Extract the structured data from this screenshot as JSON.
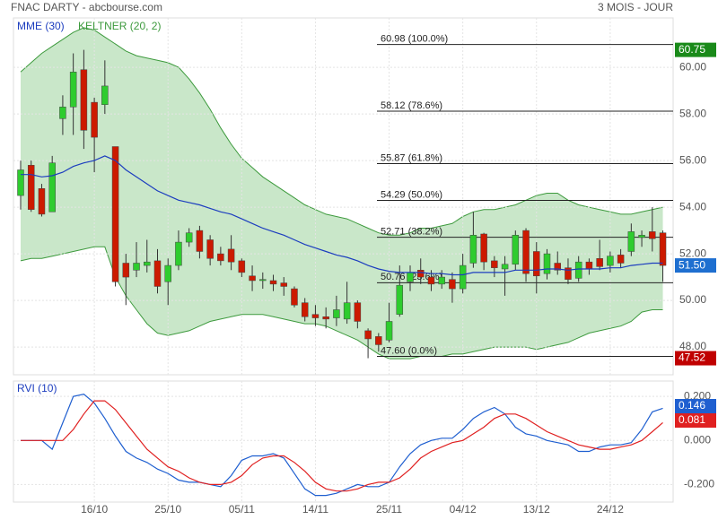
{
  "header": {
    "title": "FNAC DARTY - abcbourse.com",
    "period": "3 MOIS - JOUR"
  },
  "chart_data": [
    {
      "type": "candlestick",
      "up_color": "#2ecc2e",
      "down_color": "#cc1a00",
      "open": [
        54.5,
        55.8,
        54.8,
        53.8,
        57.8,
        58.3,
        59.9,
        58.5,
        58.4,
        56.6,
        51.6,
        51.3,
        51.5,
        51.7,
        50.8,
        51.5,
        52.5,
        53.0,
        52.6,
        52.0,
        52.2,
        51.7,
        51.05,
        50.85,
        50.85,
        50.75,
        50.5,
        49.9,
        49.4,
        49.3,
        49.25,
        49.2,
        49.9,
        48.7,
        48.45,
        48.3,
        49.4,
        50.8,
        51.3,
        51.0,
        50.7,
        50.9,
        50.5,
        51.6,
        52.85,
        51.7,
        51.35,
        51.55,
        53.0,
        52.1,
        51.15,
        51.6,
        51.4,
        50.95,
        51.65,
        51.8,
        51.5,
        51.95,
        52.1,
        52.7,
        52.95,
        52.9
      ],
      "high": [
        56.0,
        56.0,
        55.0,
        56.2,
        58.8,
        60.6,
        60.75,
        58.7,
        60.3,
        56.6,
        52.0,
        52.5,
        52.6,
        52.2,
        51.8,
        53.0,
        53.1,
        53.2,
        52.8,
        52.3,
        52.8,
        51.8,
        51.5,
        51.2,
        51.1,
        51.0,
        50.6,
        50.1,
        49.8,
        49.7,
        50.2,
        50.8,
        50.0,
        48.8,
        48.6,
        49.9,
        51.5,
        51.5,
        51.8,
        51.3,
        51.3,
        51.2,
        52.0,
        53.8,
        52.9,
        51.9,
        51.9,
        53.0,
        53.1,
        52.5,
        52.2,
        52.1,
        51.8,
        51.9,
        51.8,
        52.6,
        52.1,
        52.2,
        53.3,
        53.0,
        54.0,
        53.0
      ],
      "low": [
        53.9,
        53.8,
        53.6,
        53.8,
        57.1,
        57.1,
        56.5,
        55.5,
        58.0,
        50.6,
        49.8,
        51.0,
        51.2,
        50.3,
        49.8,
        51.3,
        52.3,
        51.8,
        51.5,
        51.5,
        51.3,
        51.0,
        50.4,
        50.5,
        50.4,
        50.2,
        49.7,
        49.1,
        48.9,
        48.8,
        48.9,
        49.0,
        48.8,
        47.52,
        47.8,
        48.2,
        49.3,
        50.4,
        50.7,
        50.4,
        50.5,
        49.9,
        50.3,
        51.4,
        51.3,
        51.0,
        50.2,
        51.3,
        50.8,
        50.3,
        50.9,
        51.1,
        50.7,
        50.8,
        51.1,
        51.3,
        51.2,
        51.4,
        51.9,
        52.3,
        52.1,
        50.8
      ],
      "close": [
        55.6,
        53.9,
        53.7,
        55.9,
        58.3,
        59.8,
        57.3,
        57.0,
        59.2,
        50.8,
        51.0,
        51.6,
        51.65,
        50.6,
        51.5,
        52.5,
        52.9,
        52.1,
        51.8,
        51.7,
        51.65,
        51.2,
        50.85,
        50.9,
        50.7,
        50.6,
        49.8,
        49.3,
        49.25,
        49.2,
        49.6,
        49.9,
        49.1,
        48.35,
        48.1,
        49.1,
        50.65,
        51.2,
        51.0,
        50.7,
        51.0,
        50.5,
        51.5,
        52.8,
        51.65,
        51.4,
        51.55,
        52.8,
        51.15,
        51.05,
        52.0,
        51.3,
        50.9,
        51.65,
        51.35,
        51.45,
        51.9,
        51.6,
        52.95,
        52.8,
        52.65,
        51.5
      ],
      "series": [
        {
          "name": "MME (30)",
          "color": "#1c3dbf",
          "values": [
            55.4,
            55.4,
            55.3,
            55.35,
            55.5,
            55.75,
            55.9,
            56.0,
            56.2,
            56.0,
            55.6,
            55.3,
            55.0,
            54.7,
            54.5,
            54.3,
            54.2,
            54.1,
            53.95,
            53.8,
            53.7,
            53.5,
            53.3,
            53.1,
            52.95,
            52.8,
            52.6,
            52.4,
            52.25,
            52.1,
            51.95,
            51.85,
            51.7,
            51.5,
            51.35,
            51.25,
            51.2,
            51.2,
            51.2,
            51.15,
            51.15,
            51.1,
            51.1,
            51.2,
            51.2,
            51.2,
            51.2,
            51.3,
            51.3,
            51.3,
            51.35,
            51.35,
            51.3,
            51.35,
            51.35,
            51.35,
            51.4,
            51.4,
            51.5,
            51.55,
            51.6,
            51.6
          ]
        }
      ],
      "band": {
        "name": "KELTNER (20, 2)",
        "color": "#3d9a3d",
        "fill": "#c9e7c9",
        "upper": [
          59.8,
          60.2,
          60.6,
          60.9,
          61.2,
          61.5,
          61.7,
          61.6,
          61.3,
          61.0,
          60.7,
          60.5,
          60.4,
          60.3,
          60.2,
          60.0,
          59.5,
          58.9,
          58.2,
          57.4,
          56.7,
          56.1,
          55.7,
          55.3,
          55.0,
          54.7,
          54.4,
          54.1,
          53.9,
          53.7,
          53.6,
          53.5,
          53.3,
          53.1,
          52.9,
          52.8,
          52.8,
          52.9,
          53.1,
          53.1,
          53.2,
          53.3,
          53.6,
          53.8,
          53.9,
          53.9,
          54.0,
          54.1,
          54.3,
          54.5,
          54.6,
          54.6,
          54.3,
          54.1,
          54.0,
          53.9,
          53.8,
          53.7,
          53.7,
          53.8,
          53.9,
          54.0
        ],
        "lower": [
          51.7,
          51.8,
          51.8,
          51.9,
          52.0,
          52.1,
          52.2,
          52.3,
          52.3,
          51.0,
          50.2,
          49.6,
          49.0,
          48.6,
          48.5,
          48.6,
          48.7,
          48.9,
          49.1,
          49.2,
          49.3,
          49.4,
          49.4,
          49.4,
          49.3,
          49.2,
          49.1,
          49.0,
          49.0,
          48.9,
          48.7,
          48.5,
          48.3,
          48.0,
          47.7,
          47.5,
          47.5,
          47.5,
          47.6,
          47.6,
          47.6,
          47.7,
          47.7,
          47.8,
          47.9,
          48.0,
          48.0,
          48.0,
          48.0,
          47.9,
          48.0,
          48.1,
          48.2,
          48.4,
          48.6,
          48.7,
          48.8,
          48.9,
          49.1,
          49.5,
          49.6,
          49.6
        ]
      },
      "levels": [
        {
          "value": 60.98,
          "label": "60.98 (100.0%)"
        },
        {
          "value": 58.12,
          "label": "58.12 (78.6%)"
        },
        {
          "value": 55.87,
          "label": "55.87 (61.8%)"
        },
        {
          "value": 54.29,
          "label": "54.29 (50.0%)"
        },
        {
          "value": 52.71,
          "label": "52.71 (38.2%)"
        },
        {
          "value": 50.76,
          "label": "50.76 (23.6%)"
        },
        {
          "value": 47.6,
          "label": "47.60 (0.0%)"
        }
      ],
      "price_labels": [
        {
          "value": 60.75,
          "label": "60.75",
          "color": "#1a8a1a"
        },
        {
          "value": 51.5,
          "label": "51.50",
          "color": "#1e6fd0"
        },
        {
          "value": 47.52,
          "label": "47.52",
          "color": "#c00000"
        }
      ],
      "ylim": [
        46.81,
        62.12
      ],
      "yticks": [
        {
          "value": 48,
          "label": "48.00"
        },
        {
          "value": 50,
          "label": "50.00"
        },
        {
          "value": 52,
          "label": "52.00"
        },
        {
          "value": 54,
          "label": "54.00"
        },
        {
          "value": 56,
          "label": "56.00"
        },
        {
          "value": 58,
          "label": "58.00"
        },
        {
          "value": 60,
          "label": "60.00"
        }
      ],
      "grid": true
    },
    {
      "type": "line",
      "title": "RVI (10)",
      "categories": [
        null,
        null,
        null,
        null,
        null,
        null,
        null,
        "16/10",
        null,
        null,
        null,
        null,
        null,
        null,
        "25/10",
        null,
        null,
        null,
        null,
        null,
        null,
        "05/11",
        null,
        null,
        null,
        null,
        null,
        null,
        "14/11",
        null,
        null,
        null,
        null,
        null,
        null,
        "25/11",
        null,
        null,
        null,
        null,
        null,
        null,
        "04/12",
        null,
        null,
        null,
        null,
        null,
        null,
        "13/12",
        null,
        null,
        null,
        null,
        null,
        null,
        "24/12",
        null,
        null,
        null,
        null,
        null
      ],
      "series": [
        {
          "name": null,
          "color": "#1f5fd0",
          "values": [
            0.0,
            0.0,
            0.0,
            -0.04,
            0.08,
            0.2,
            0.21,
            0.17,
            0.1,
            0.02,
            -0.05,
            -0.08,
            -0.1,
            -0.13,
            -0.15,
            -0.18,
            -0.19,
            -0.19,
            -0.2,
            -0.21,
            -0.16,
            -0.09,
            -0.07,
            -0.07,
            -0.06,
            -0.08,
            -0.15,
            -0.22,
            -0.25,
            -0.25,
            -0.24,
            -0.22,
            -0.2,
            -0.21,
            -0.21,
            -0.19,
            -0.12,
            -0.06,
            -0.02,
            0.0,
            0.01,
            0.01,
            0.05,
            0.1,
            0.13,
            0.15,
            0.12,
            0.06,
            0.03,
            0.02,
            0.0,
            -0.01,
            -0.02,
            -0.05,
            -0.05,
            -0.03,
            -0.02,
            -0.02,
            -0.01,
            0.05,
            0.13,
            0.146
          ]
        },
        {
          "name": null,
          "color": "#e02020",
          "values": [
            0.0,
            0.0,
            0.0,
            0.0,
            0.0,
            0.05,
            0.12,
            0.18,
            0.18,
            0.14,
            0.08,
            0.02,
            -0.04,
            -0.08,
            -0.12,
            -0.14,
            -0.17,
            -0.19,
            -0.2,
            -0.2,
            -0.19,
            -0.16,
            -0.11,
            -0.08,
            -0.07,
            -0.07,
            -0.1,
            -0.14,
            -0.19,
            -0.22,
            -0.23,
            -0.23,
            -0.22,
            -0.2,
            -0.19,
            -0.19,
            -0.17,
            -0.13,
            -0.08,
            -0.05,
            -0.03,
            -0.01,
            0.0,
            0.03,
            0.06,
            0.1,
            0.12,
            0.12,
            0.1,
            0.07,
            0.04,
            0.02,
            0.0,
            -0.02,
            -0.03,
            -0.04,
            -0.04,
            -0.03,
            -0.02,
            0.0,
            0.04,
            0.081
          ]
        }
      ],
      "ylim": [
        -0.28,
        0.27
      ],
      "yticks": [
        {
          "value": -0.2,
          "label": "-0.200"
        },
        {
          "value": 0,
          "label": "0.000"
        },
        {
          "value": 0.2,
          "label": "0.200"
        }
      ],
      "grid": true
    }
  ]
}
